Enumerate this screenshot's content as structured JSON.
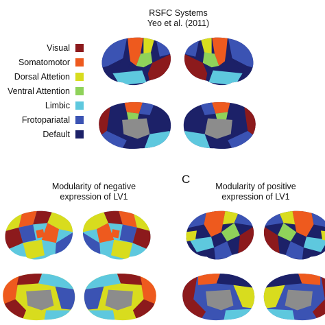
{
  "figure": {
    "title_line1": "RSFC Systems",
    "title_line2": "Yeo et al. (2011)",
    "legend": [
      {
        "label": "Visual",
        "color": "#8c1a1c"
      },
      {
        "label": "Somatomotor",
        "color": "#ee5a1e"
      },
      {
        "label": "Dorsal Attetion",
        "color": "#d8dc1e"
      },
      {
        "label": "Ventral Attention",
        "color": "#8fd25a"
      },
      {
        "label": "Limbic",
        "color": "#5ec8de"
      },
      {
        "label": "Frotopariatal",
        "color": "#3b53b3"
      },
      {
        "label": "Default",
        "color": "#1c2168"
      }
    ],
    "panel_b": {
      "title_line1": "Modularity of negative",
      "title_line2": "expression of LV1"
    },
    "panel_c": {
      "letter": "C",
      "title_line1": "Modularity of positive",
      "title_line2": "expression of LV1"
    },
    "brain_views": [
      "top-left-lateral",
      "top-right-lateral",
      "top-left-medial",
      "top-right-medial",
      "b-left-lateral",
      "b-right-lateral",
      "b-left-medial",
      "b-right-medial",
      "c-left-lateral",
      "c-right-lateral",
      "c-left-medial",
      "c-right-medial"
    ]
  }
}
